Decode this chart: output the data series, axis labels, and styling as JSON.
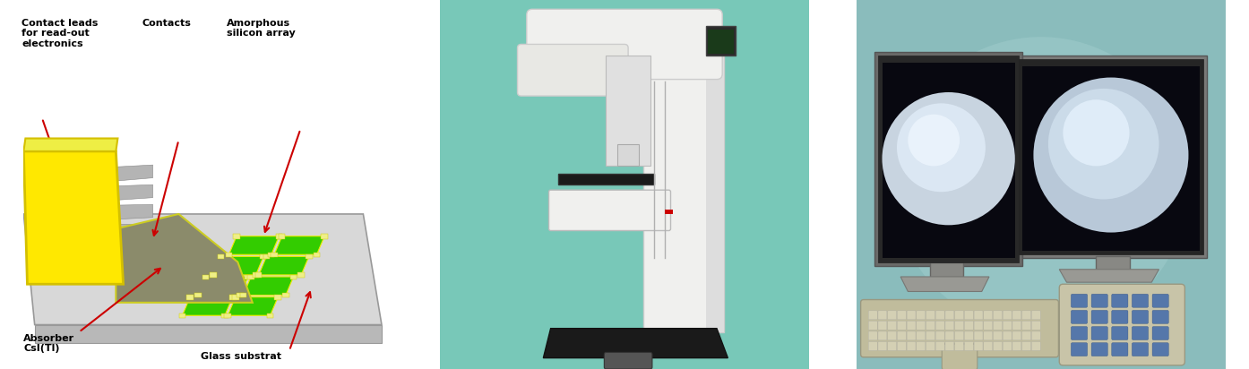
{
  "bg_color": "#ffffff",
  "panel1_bg": "#ffffff",
  "panel2_bg": "#70D4B8",
  "panel3_bg": "#88C8C8",
  "labels": {
    "contact_leads": "Contact leads\nfor read-out\nelectronics",
    "contacts": "Contacts",
    "amorphous": "Amorphous\nsilicon array",
    "glass": "Glass substrat",
    "absorber": "Absorber\nCsI(Tl)"
  },
  "colors": {
    "yellow": "#FFE800",
    "yellow_dark": "#D4C000",
    "green": "#33CC00",
    "green_dark": "#22AA00",
    "gray_body": "#8B8B6B",
    "light_gray": "#C8C8C8",
    "gray_base": "#CCCCCC",
    "dark_gray": "#888888",
    "arrow_red": "#CC0000",
    "glass_top": "#D8D8D8",
    "glass_side": "#B8B8B8",
    "strip_gray": "#AAAAAA",
    "machine_white": "#F0F0EE",
    "machine_light": "#E8E8E4",
    "machine_dark": "#222222",
    "monitor_body": "#8A8A88",
    "monitor_dark": "#333330",
    "screen_dark": "#080810",
    "breast_white": "#C8D8E8",
    "breast_mid": "#A0B8CC",
    "breast_dark": "#607888",
    "kb_color": "#C8C4B0",
    "teal_bg": "#78C8B8"
  }
}
